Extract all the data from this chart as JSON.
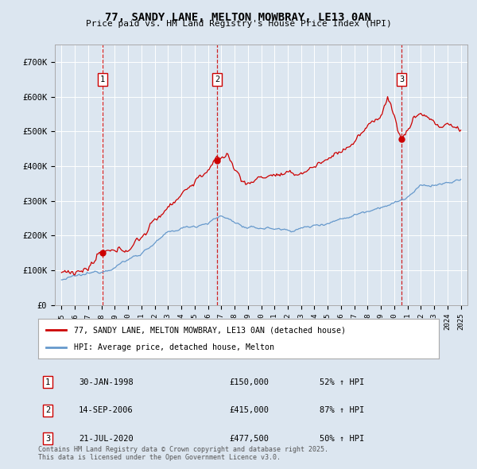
{
  "title": "77, SANDY LANE, MELTON MOWBRAY, LE13 0AN",
  "subtitle": "Price paid vs. HM Land Registry's House Price Index (HPI)",
  "background_color": "#dce6f0",
  "plot_bg_color": "#dce6f0",
  "red_line_label": "77, SANDY LANE, MELTON MOWBRAY, LE13 0AN (detached house)",
  "blue_line_label": "HPI: Average price, detached house, Melton",
  "footer": "Contains HM Land Registry data © Crown copyright and database right 2025.\nThis data is licensed under the Open Government Licence v3.0.",
  "transactions": [
    {
      "num": 1,
      "date": "30-JAN-1998",
      "price": 150000,
      "hpi_change": "52% ↑ HPI",
      "year": 1998.08
    },
    {
      "num": 2,
      "date": "14-SEP-2006",
      "price": 415000,
      "hpi_change": "87% ↑ HPI",
      "year": 2006.71
    },
    {
      "num": 3,
      "date": "21-JUL-2020",
      "price": 477500,
      "hpi_change": "50% ↑ HPI",
      "year": 2020.54
    }
  ],
  "ylim": [
    0,
    750000
  ],
  "yticks": [
    0,
    100000,
    200000,
    300000,
    400000,
    500000,
    600000,
    700000
  ],
  "ytick_labels": [
    "£0",
    "£100K",
    "£200K",
    "£300K",
    "£400K",
    "£500K",
    "£600K",
    "£700K"
  ],
  "xlim_start": 1994.5,
  "xlim_end": 2025.5,
  "red_color": "#cc0000",
  "blue_color": "#6699cc",
  "vline_color": "#cc0000",
  "grid_color": "#ffffff",
  "number_box_color": "#cc0000",
  "hpi_anchors_x": [
    1995.0,
    1996.0,
    1997.0,
    1998.0,
    1999.0,
    2000.0,
    2001.0,
    2002.0,
    2003.0,
    2004.0,
    2005.0,
    2006.0,
    2007.0,
    2008.0,
    2009.0,
    2010.0,
    2011.0,
    2012.0,
    2013.0,
    2014.0,
    2015.0,
    2016.0,
    2017.0,
    2018.0,
    2019.0,
    2020.0,
    2021.0,
    2022.0,
    2023.0,
    2024.0,
    2025.0
  ],
  "hpi_anchors_y": [
    72000,
    80000,
    88000,
    98000,
    112000,
    130000,
    150000,
    178000,
    205000,
    220000,
    228000,
    238000,
    255000,
    240000,
    218000,
    222000,
    220000,
    215000,
    220000,
    228000,
    238000,
    248000,
    260000,
    272000,
    285000,
    292000,
    310000,
    340000,
    345000,
    350000,
    360000
  ],
  "prop_anchors_x": [
    1995.0,
    1996.0,
    1997.0,
    1998.08,
    1999.0,
    2000.0,
    2001.0,
    2002.0,
    2003.0,
    2004.0,
    2005.0,
    2006.71,
    2007.5,
    2008.0,
    2009.0,
    2010.0,
    2011.0,
    2012.0,
    2013.0,
    2014.0,
    2015.0,
    2016.0,
    2017.0,
    2018.0,
    2019.0,
    2019.5,
    2020.54,
    2021.0,
    2021.5,
    2022.0,
    2022.5,
    2023.0,
    2023.5,
    2024.0,
    2024.5,
    2025.0
  ],
  "prop_anchors_y": [
    93000,
    97000,
    103000,
    150000,
    148000,
    165000,
    195000,
    240000,
    285000,
    320000,
    355000,
    415000,
    435000,
    390000,
    345000,
    370000,
    375000,
    370000,
    380000,
    400000,
    420000,
    445000,
    470000,
    510000,
    550000,
    600000,
    477500,
    500000,
    540000,
    555000,
    540000,
    530000,
    510000,
    520000,
    510000,
    505000
  ]
}
